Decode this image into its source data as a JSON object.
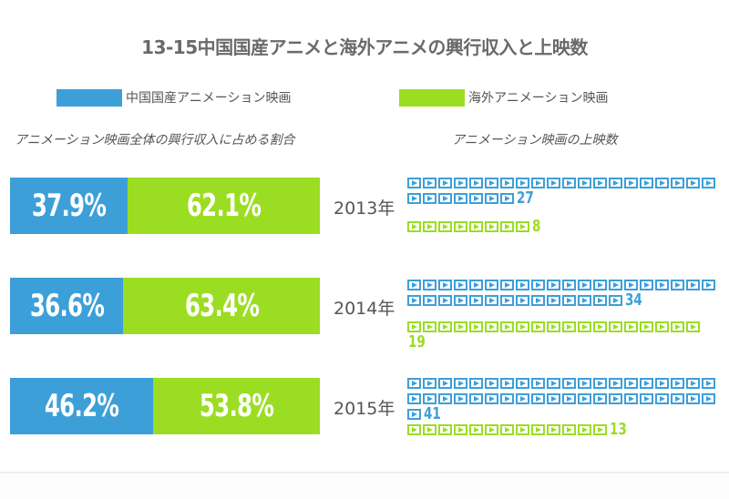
{
  "title": "13-15中国国産アニメと海外アニメの興行収入と上映数",
  "legend": [
    {
      "label": "中国国産アニメーション映画",
      "color": "#3d9fd8"
    },
    {
      "label": "海外アニメーション映画",
      "color": "#9bdd22"
    }
  ],
  "chart_data": [
    {
      "type": "bar",
      "stacked": true,
      "title": "アニメーション映画全体の興行収入に占める割合",
      "categories": [
        "2013年",
        "2014年",
        "2015年"
      ],
      "series": [
        {
          "name": "中国国産アニメーション映画",
          "values": [
            37.9,
            36.6,
            46.2
          ],
          "labels": [
            "37.9%",
            "36.6%",
            "46.2%"
          ]
        },
        {
          "name": "海外アニメーション映画",
          "values": [
            62.1,
            63.4,
            53.8
          ],
          "labels": [
            "62.1%",
            "63.4%",
            "53.8%"
          ]
        }
      ]
    },
    {
      "type": "pictograph",
      "title": "アニメーション映画の上映数",
      "icon": "film-play-icon",
      "categories": [
        "2013年",
        "2014年",
        "2015年"
      ],
      "series": [
        {
          "name": "中国国産アニメーション映画",
          "values": [
            27,
            34,
            41
          ]
        },
        {
          "name": "海外アニメーション映画",
          "values": [
            8,
            19,
            13
          ]
        }
      ]
    }
  ]
}
